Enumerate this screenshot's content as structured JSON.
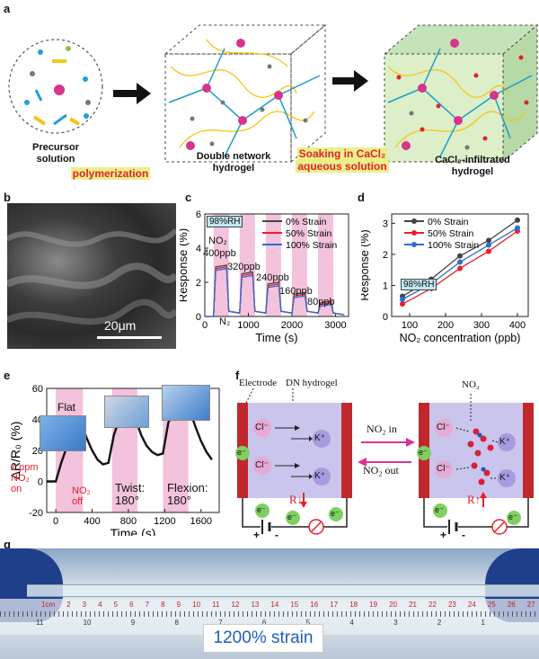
{
  "panels": {
    "a": "a",
    "b": "b",
    "c": "c",
    "d": "d",
    "e": "e",
    "f": "f",
    "g": "g"
  },
  "panel_a": {
    "precursor": "Precursor\nsolution",
    "polymerization": "polymerization",
    "dn_hydrogel": "Double network\nhydrogel",
    "soaking_line1": "Soaking in CaCl₂",
    "soaking_line2": "aqueous solution",
    "infiltrated": "CaCl₂-infiltrated\nhydrogel"
  },
  "panel_b": {
    "scalebar": "20μm"
  },
  "panel_c": {
    "rh": "98%RH",
    "no2": "NO₂",
    "n2": "N₂",
    "conc_labels": [
      "400ppb",
      "320ppb",
      "240ppb",
      "160ppb",
      "80ppb"
    ],
    "legend": [
      "0% Strain",
      "50% Strain",
      "100% Strain"
    ]
  },
  "panel_d": {
    "rh": "98%RH"
  },
  "panel_e": {
    "flat": "Flat",
    "on_label": "1 ppm\nNO₂\non",
    "off_label": "NO₂\noff",
    "twist": "Twist:\n180°",
    "flexion": "Flexion:\n180°"
  },
  "panel_f": {
    "electrode": "Electrode",
    "dn": "DN hydrogel",
    "no2_in": "NO₂ in",
    "no2_out": "NO₂ out",
    "no2": "NO₂",
    "cl": "Cl⁻",
    "k": "K⁺",
    "e": "e⁻",
    "r_down": "R↓",
    "r_up": "R↑",
    "plus": "+",
    "minus": "-"
  },
  "panel_g": {
    "strain": "1200% strain",
    "ruler_top": [
      "1cm",
      "2",
      "3",
      "4",
      "5",
      "6",
      "7",
      "8",
      "9",
      "10",
      "11",
      "12",
      "13",
      "14",
      "15",
      "16",
      "17",
      "18",
      "19",
      "20",
      "21",
      "22",
      "23",
      "24",
      "25",
      "26",
      "27"
    ],
    "ruler_bottom": [
      "11",
      "10",
      "9",
      "8",
      "7",
      "6",
      "5",
      "4",
      "3",
      "2",
      "1"
    ]
  },
  "colors": {
    "pink_band": "#f3c2dc",
    "black": "#333333",
    "red": "#e8202a",
    "blue": "#2a6fcf"
  },
  "chart_data": [
    {
      "type": "line",
      "xlabel": "Time (s)",
      "ylabel": "Response (%)",
      "xlim": [
        0,
        3300
      ],
      "ylim": [
        0,
        6
      ],
      "xticks": [
        0,
        1000,
        2000,
        3000
      ],
      "yticks": [
        0,
        2,
        4,
        6
      ],
      "series": [
        {
          "name": "0% Strain",
          "color": "#444444",
          "x": [
            0,
            200,
            250,
            500,
            550,
            800,
            850,
            1100,
            1150,
            1400,
            1450,
            1700,
            1750,
            2000,
            2050,
            2300,
            2350,
            2600,
            2650,
            2900,
            2950,
            3200
          ],
          "y": [
            0,
            0,
            2.9,
            3.0,
            0.3,
            0.2,
            2.5,
            2.6,
            0.3,
            0.2,
            1.9,
            2.0,
            0.3,
            0.2,
            1.3,
            1.4,
            0.3,
            0.2,
            0.8,
            0.9,
            0.2,
            0.1
          ]
        },
        {
          "name": "50% Strain",
          "color": "#e8202a",
          "x": [
            0,
            200,
            250,
            500,
            550,
            800,
            850,
            1100,
            1150,
            1400,
            1450,
            1700,
            1750,
            2000,
            2050,
            2300,
            2350,
            2600,
            2650,
            2900,
            2950,
            3200
          ],
          "y": [
            0,
            0,
            2.8,
            2.9,
            0.3,
            0.2,
            2.4,
            2.5,
            0.3,
            0.2,
            1.8,
            1.9,
            0.3,
            0.2,
            1.2,
            1.3,
            0.3,
            0.2,
            0.7,
            0.8,
            0.2,
            0.1
          ]
        },
        {
          "name": "100% Strain",
          "color": "#2a6fcf",
          "x": [
            0,
            200,
            250,
            500,
            550,
            800,
            850,
            1100,
            1150,
            1400,
            1450,
            1700,
            1750,
            2000,
            2050,
            2300,
            2350,
            2600,
            2650,
            2900,
            2950,
            3200
          ],
          "y": [
            0,
            0,
            2.7,
            2.8,
            0.3,
            0.2,
            2.3,
            2.4,
            0.3,
            0.2,
            1.7,
            1.8,
            0.3,
            0.2,
            1.1,
            1.2,
            0.3,
            0.2,
            0.6,
            0.7,
            0.2,
            0.1
          ]
        }
      ]
    },
    {
      "type": "line",
      "xlabel": "NO₂ concentration (ppb)",
      "ylabel": "Response (%)",
      "xlim": [
        50,
        430
      ],
      "ylim": [
        0,
        3.3
      ],
      "xticks": [
        100,
        200,
        300,
        400
      ],
      "yticks": [
        0,
        1,
        2,
        3
      ],
      "series": [
        {
          "name": "0% Strain",
          "color": "#444444",
          "x": [
            80,
            160,
            240,
            320,
            400
          ],
          "y": [
            0.65,
            1.2,
            1.95,
            2.45,
            3.1
          ]
        },
        {
          "name": "50% Strain",
          "color": "#e8202a",
          "x": [
            80,
            160,
            240,
            320,
            400
          ],
          "y": [
            0.4,
            0.9,
            1.55,
            2.1,
            2.75
          ]
        },
        {
          "name": "100% Strain",
          "color": "#2a6fcf",
          "x": [
            80,
            160,
            240,
            320,
            400
          ],
          "y": [
            0.55,
            1.05,
            1.75,
            2.3,
            2.85
          ]
        }
      ]
    },
    {
      "type": "line",
      "xlabel": "Time (s)",
      "ylabel": "ΔR/R₀ (%)",
      "xlim": [
        -100,
        1800
      ],
      "ylim": [
        -20,
        60
      ],
      "xticks": [
        0,
        400,
        800,
        1200,
        1600
      ],
      "yticks": [
        -20,
        0,
        20,
        40,
        60
      ],
      "series": [
        {
          "name": "",
          "color": "#111111",
          "x": [
            -100,
            0,
            60,
            120,
            180,
            240,
            300,
            340,
            400,
            460,
            520,
            580,
            640,
            700,
            760,
            820,
            880,
            940,
            1000,
            1060,
            1120,
            1180,
            1240,
            1300,
            1360,
            1420,
            1480,
            1540,
            1600,
            1660,
            1720
          ],
          "y": [
            0,
            0,
            12,
            22,
            29,
            33,
            35,
            28,
            20,
            14,
            11,
            12,
            30,
            40,
            46,
            48,
            40,
            30,
            23,
            19,
            17,
            18,
            38,
            47,
            52,
            53,
            45,
            35,
            26,
            19,
            14
          ]
        }
      ]
    }
  ]
}
